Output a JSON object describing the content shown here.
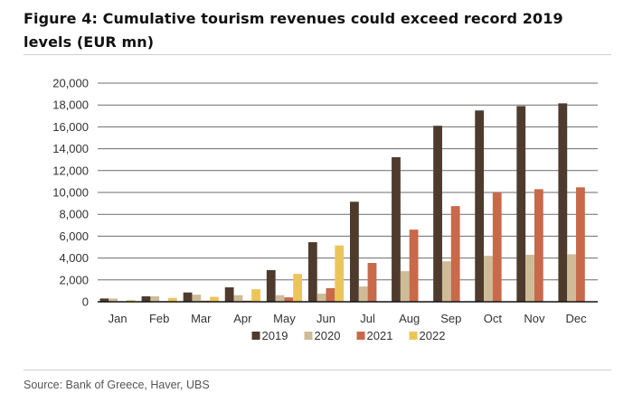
{
  "figure": {
    "title": "Figure 4: Cumulative tourism revenues could exceed record 2019 levels (EUR mn)",
    "source": "Source: Bank of Greece, Haver, UBS"
  },
  "chart_data": {
    "type": "bar",
    "title": "Figure 4: Cumulative tourism revenues could exceed record 2019 levels (EUR mn)",
    "xlabel": "",
    "ylabel": "",
    "ylim": [
      0,
      20000
    ],
    "yticks": [
      0,
      2000,
      4000,
      6000,
      8000,
      10000,
      12000,
      14000,
      16000,
      18000,
      20000
    ],
    "ytick_labels": [
      "0",
      "2,000",
      "4,000",
      "6,000",
      "8,000",
      "10,000",
      "12,000",
      "14,000",
      "16,000",
      "18,000",
      "20,000"
    ],
    "grid": true,
    "legend_position": "bottom-center",
    "categories": [
      "Jan",
      "Feb",
      "Mar",
      "Apr",
      "May",
      "Jun",
      "Jul",
      "Aug",
      "Sep",
      "Oct",
      "Nov",
      "Dec"
    ],
    "series": [
      {
        "name": "2019",
        "color": "#4e3b2d",
        "values": [
          300,
          500,
          850,
          1320,
          2900,
          5450,
          9150,
          13220,
          16100,
          17500,
          17900,
          18150
        ]
      },
      {
        "name": "2020",
        "color": "#cfbb98",
        "values": [
          300,
          500,
          650,
          600,
          600,
          750,
          1400,
          2800,
          3700,
          4200,
          4300,
          4350
        ]
      },
      {
        "name": "2021",
        "color": "#c8694a",
        "values": [
          0,
          50,
          100,
          100,
          400,
          1250,
          3550,
          6600,
          8750,
          10000,
          10300,
          10470
        ]
      },
      {
        "name": "2022",
        "color": "#ecc55a",
        "values": [
          150,
          350,
          450,
          1150,
          2550,
          5150,
          null,
          null,
          null,
          null,
          null,
          null
        ]
      }
    ]
  }
}
